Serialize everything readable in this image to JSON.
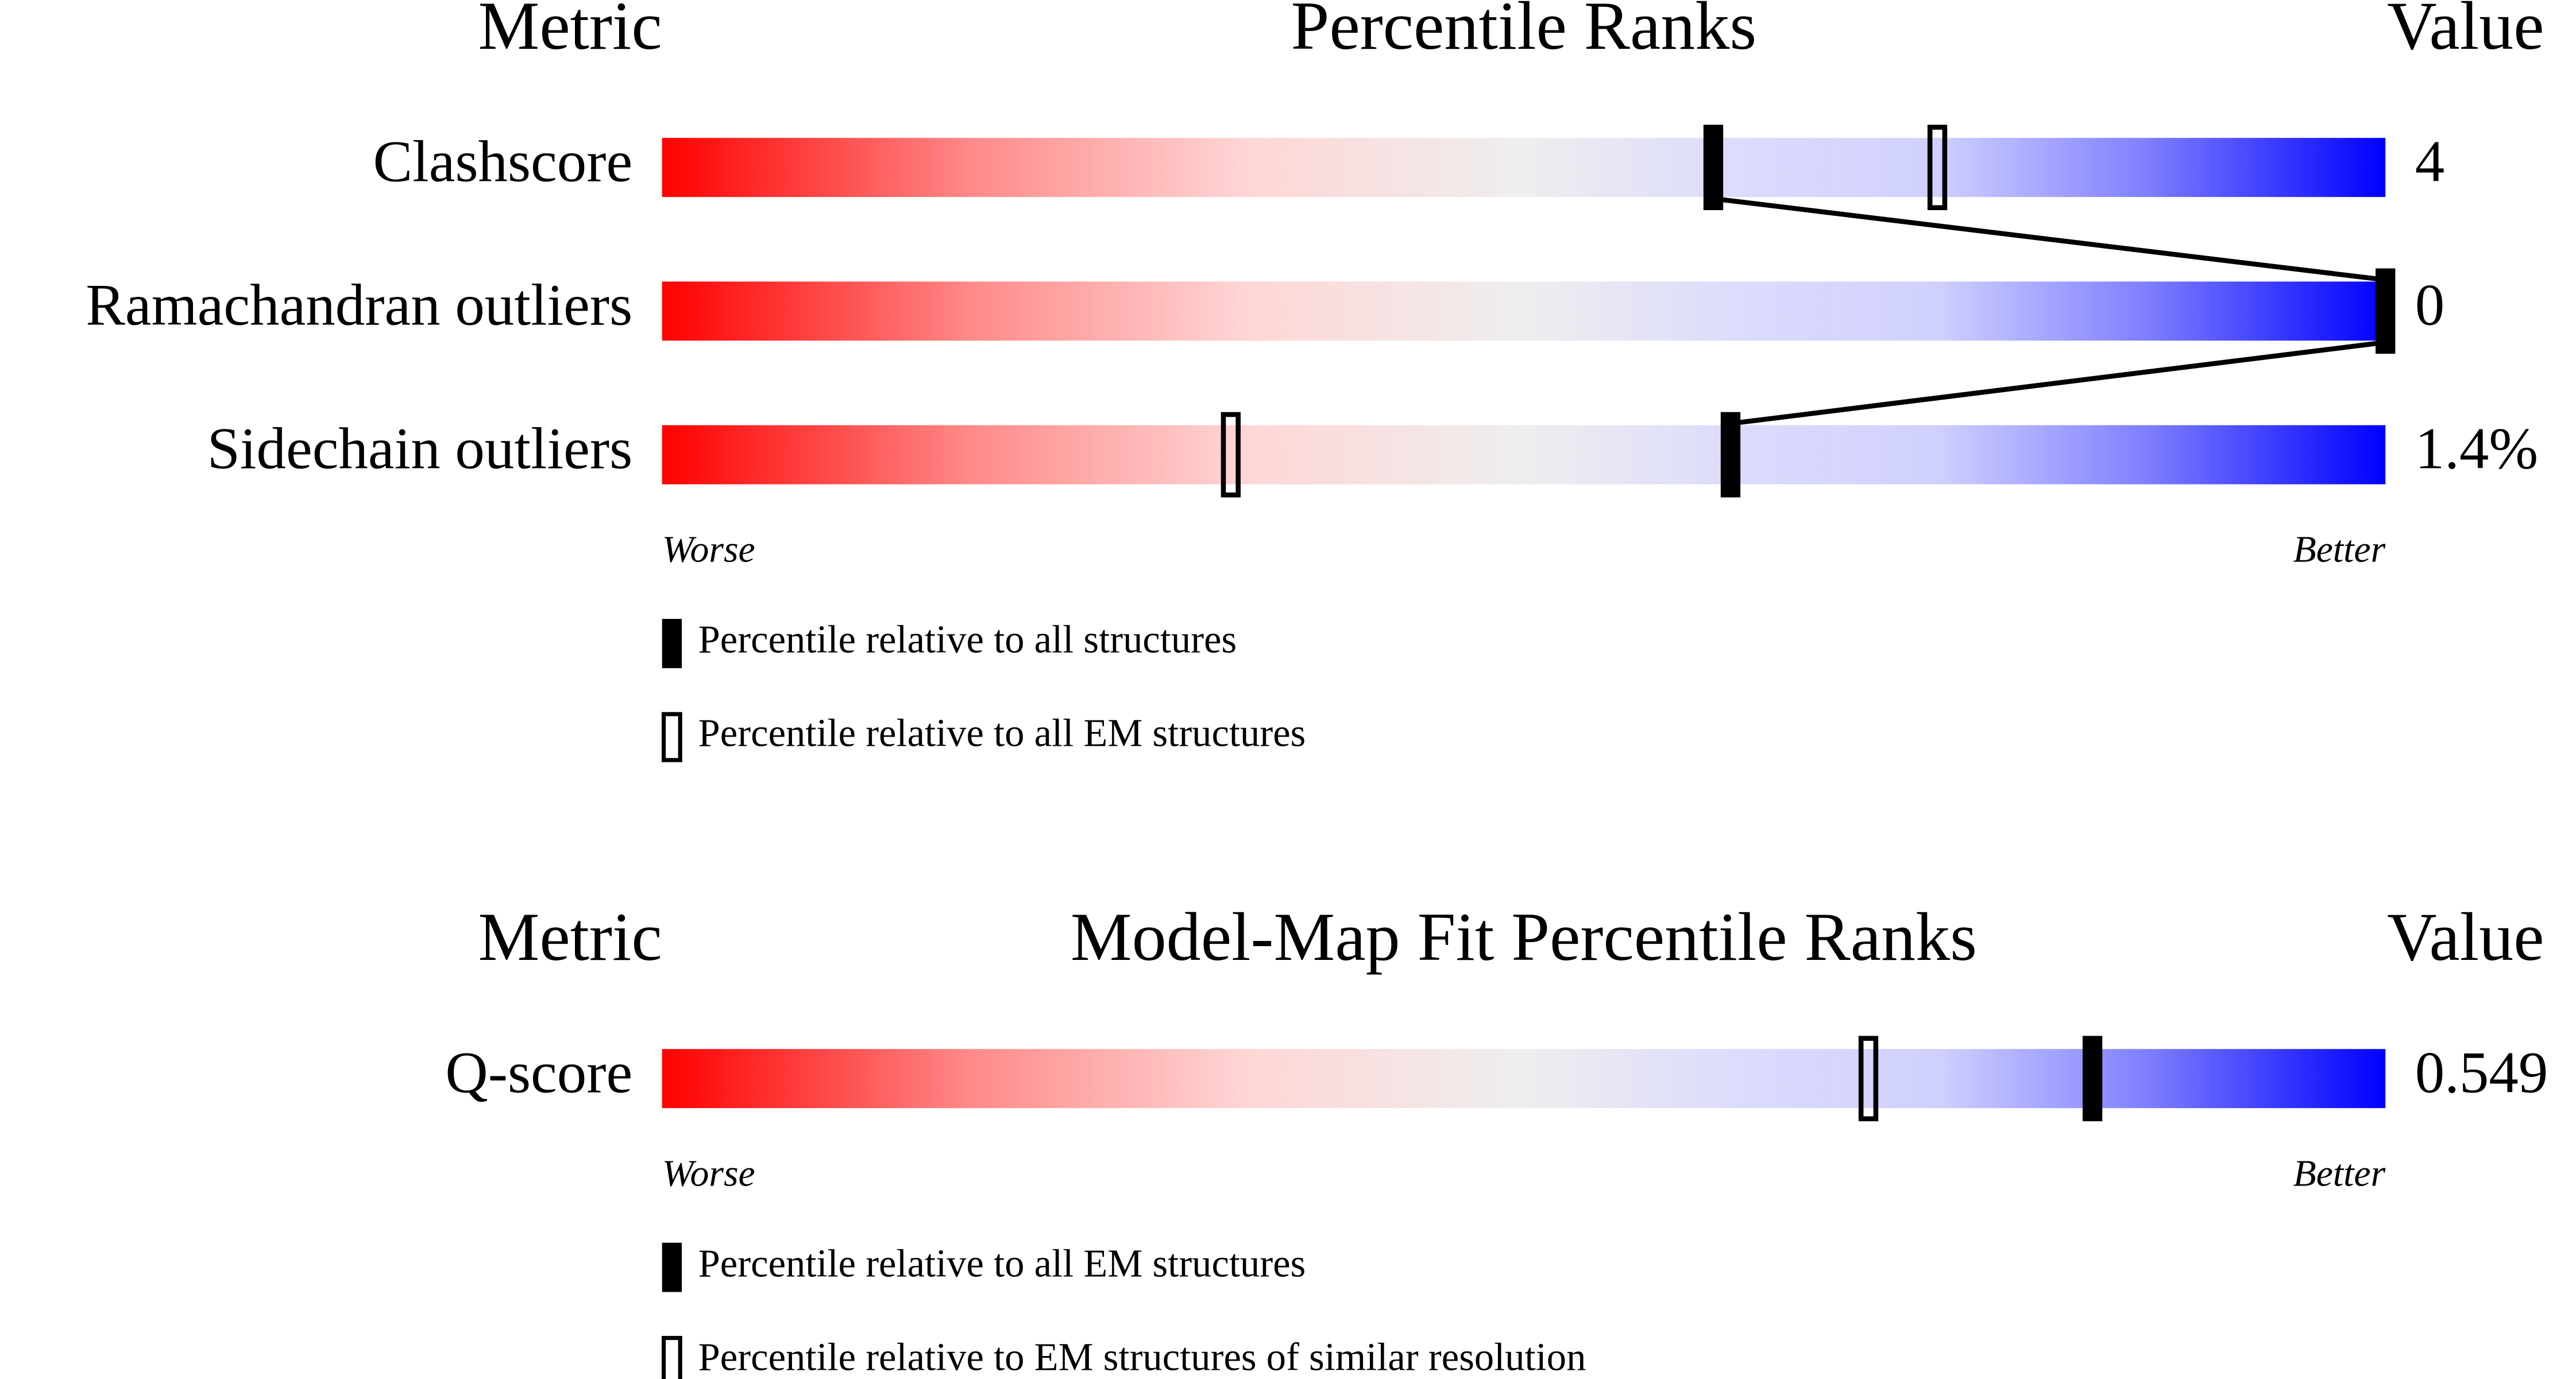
{
  "chart_data": [
    {
      "type": "percentile-slider",
      "column_headers": [
        "Metric",
        "Percentile Ranks",
        "Value"
      ],
      "categories": [
        "Clashscore",
        "Ramachandran outliers",
        "Sidechain outliers"
      ],
      "metric_values": [
        "4",
        "0",
        "1.4%"
      ],
      "xlim": [
        0,
        100
      ],
      "axis_labels": [
        "Worse",
        "Better"
      ],
      "series": [
        {
          "name": "Percentile relative to all structures",
          "marker": "filled",
          "color": "#000000",
          "connector": true,
          "values": [
            61,
            100,
            62
          ]
        },
        {
          "name": "Percentile relative to all EM structures",
          "marker": "open",
          "color": "#000000",
          "connector": false,
          "values": [
            74,
            null,
            33
          ]
        }
      ]
    },
    {
      "type": "percentile-slider",
      "column_headers": [
        "Metric",
        "Model-Map Fit Percentile Ranks",
        "Value"
      ],
      "categories": [
        "Q-score"
      ],
      "metric_values": [
        "0.549"
      ],
      "xlim": [
        0,
        100
      ],
      "axis_labels": [
        "Worse",
        "Better"
      ],
      "series": [
        {
          "name": "Percentile relative to all EM structures",
          "marker": "filled",
          "color": "#000000",
          "connector": true,
          "values": [
            83
          ]
        },
        {
          "name": "Percentile relative to EM structures of similar resolution",
          "marker": "open",
          "color": "#000000",
          "connector": false,
          "values": [
            70
          ]
        }
      ]
    }
  ]
}
